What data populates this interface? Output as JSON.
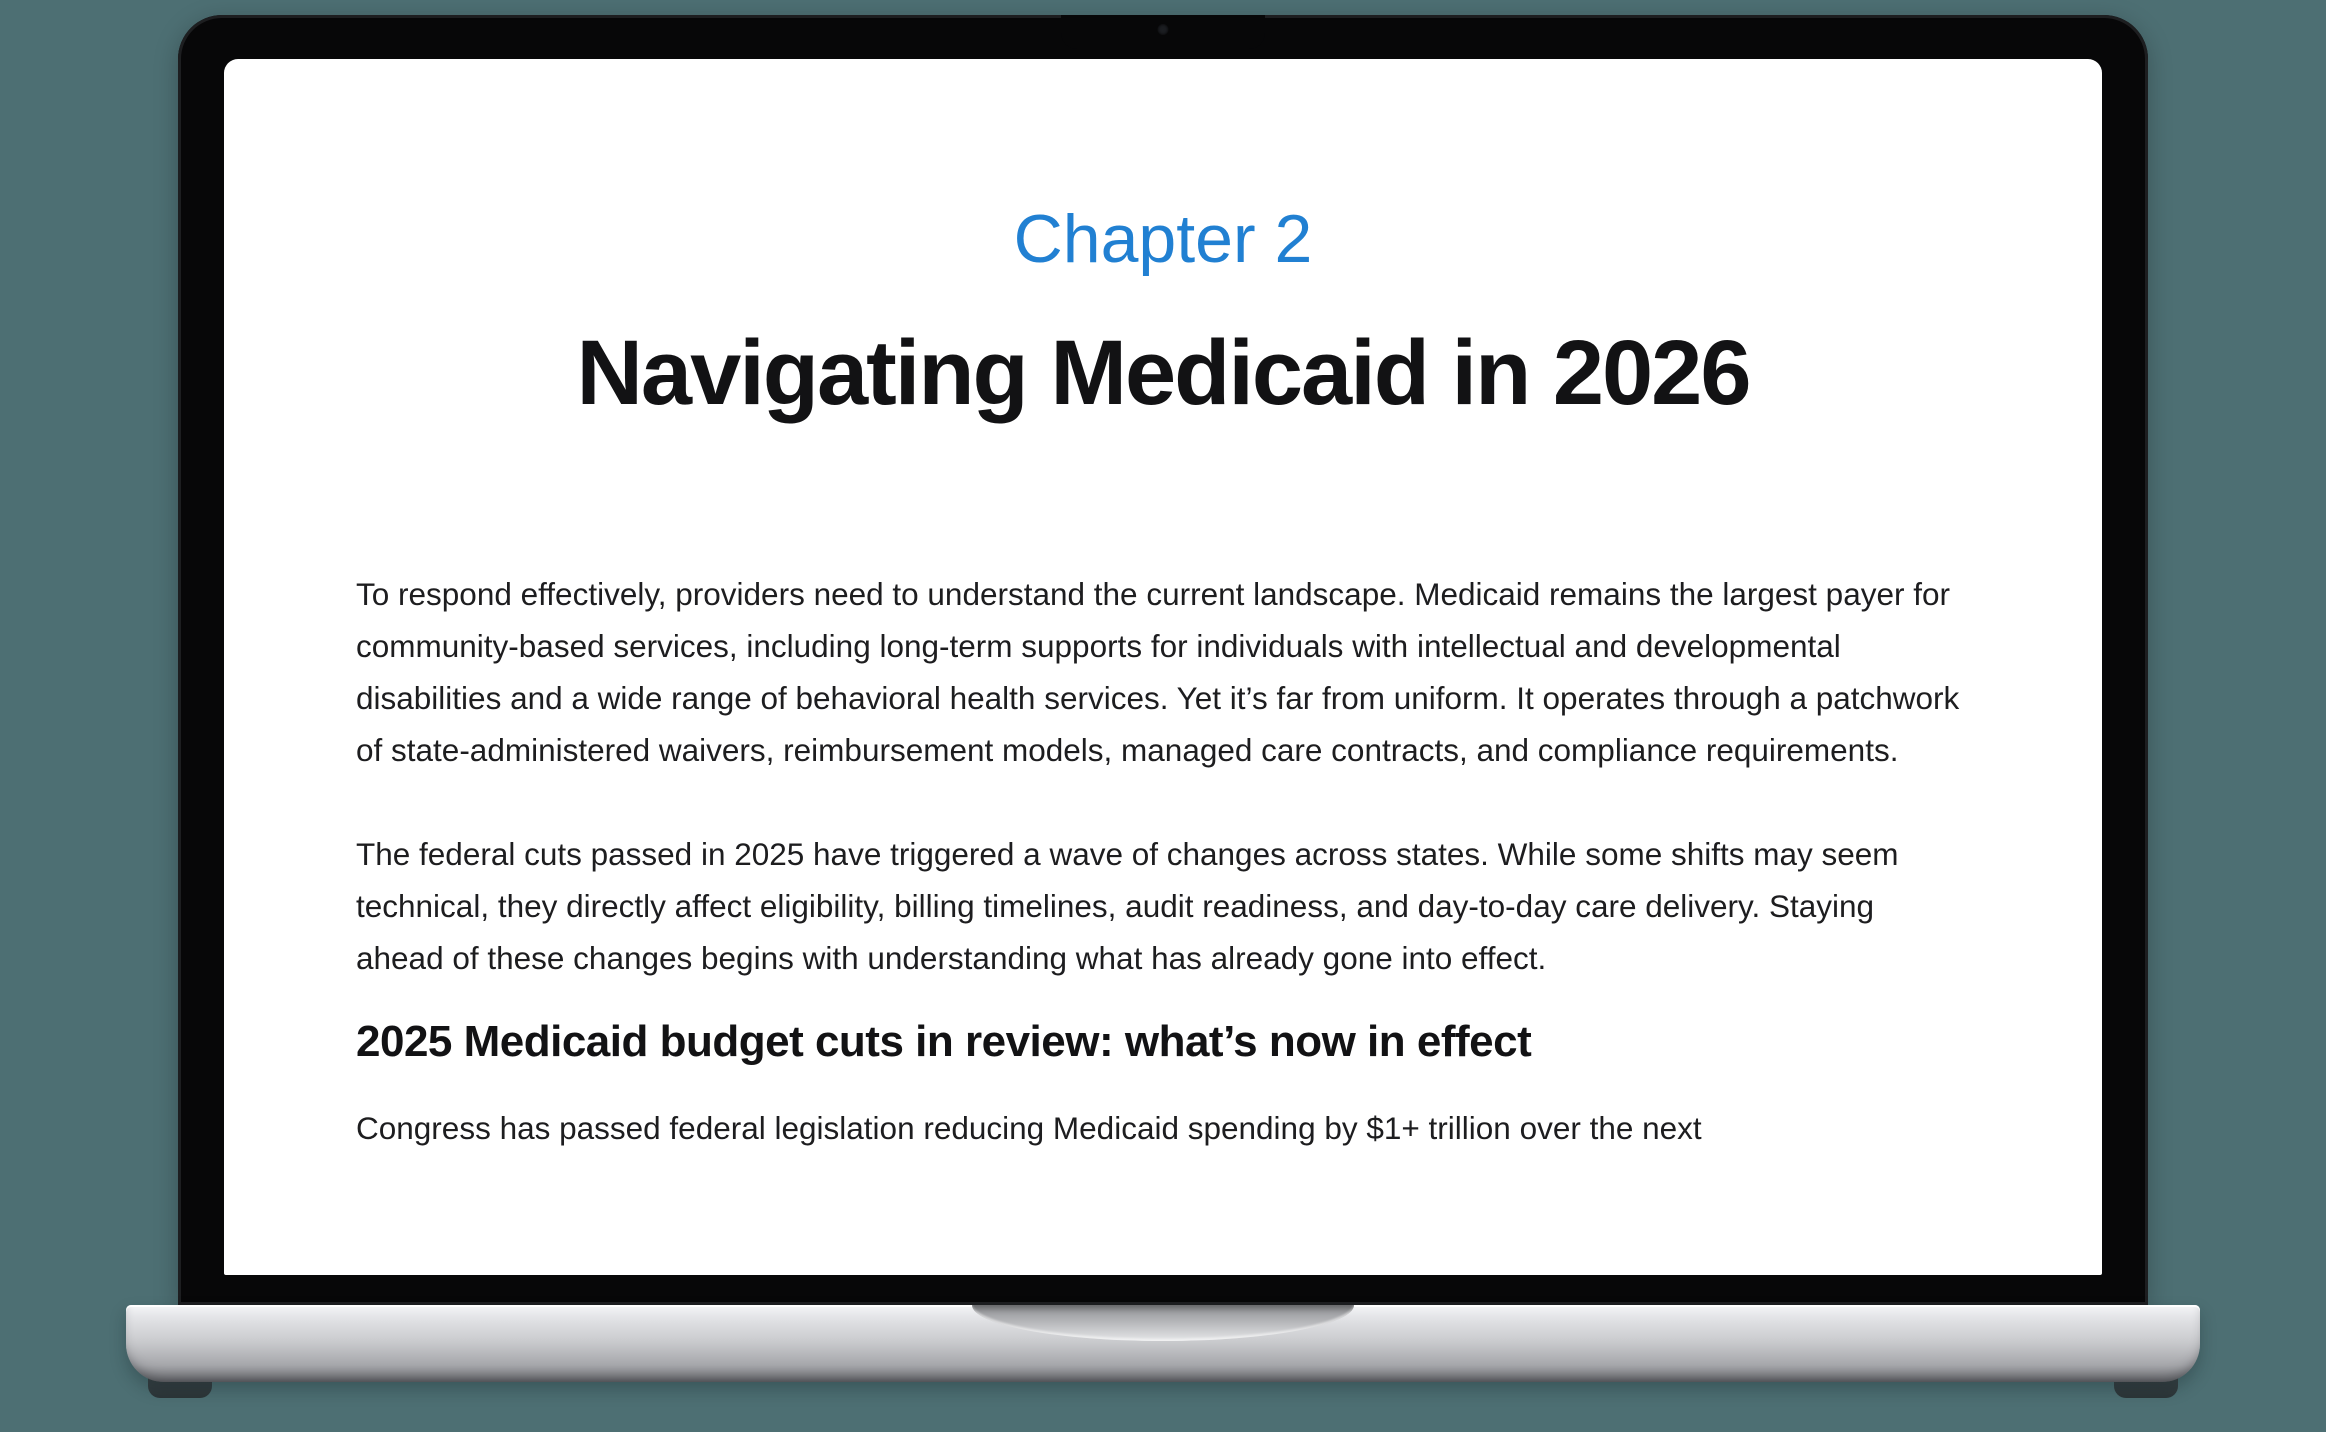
{
  "colors": {
    "background_teal": "#4d6f73",
    "accent_blue": "#2180d2",
    "page_background": "#ffffff",
    "body_text": "#1d1d1f"
  },
  "device": {
    "type": "laptop-mockup"
  },
  "document": {
    "chapter_label": "Chapter 2",
    "title": "Navigating Medicaid in 2026",
    "paragraphs": [
      "To respond effectively, providers need to understand the current landscape. Medicaid remains the largest payer for community-based services, including long-term supports for individuals with intellectual and developmental disabilities and a wide range of behavioral health services. Yet it’s far from uniform. It operates through a patchwork of state-administered waivers, reimbursement models, managed care contracts, and compliance requirements.",
      "The federal cuts passed in 2025 have triggered a wave of changes across states. While some shifts may seem technical, they directly affect eligibility, billing timelines, audit readiness, and day-to-day care delivery. Staying ahead of these changes begins with understanding what has already gone into effect."
    ],
    "section_heading": "2025 Medicaid budget cuts in review: what’s now in effect",
    "partial_paragraph": "Congress has passed federal legislation reducing Medicaid spending by $1+ trillion over the next"
  }
}
